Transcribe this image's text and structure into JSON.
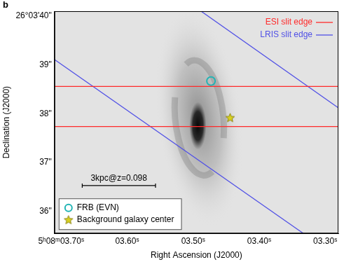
{
  "chart_data": {
    "type": "scatter",
    "panel": "b",
    "x_label": "Right Ascension (J2000)",
    "y_label": "Declination (J2000)",
    "xlim": [
      3.71,
      3.28
    ],
    "ylim": [
      35.55,
      40.1
    ],
    "xticks": [
      {
        "value": 3.7,
        "label": "5ʰ08ᵐ03.70ˢ"
      },
      {
        "value": 3.6,
        "label": "03.60ˢ"
      },
      {
        "value": 3.5,
        "label": "03.50ˢ"
      },
      {
        "value": 3.4,
        "label": "03.40ˢ"
      },
      {
        "value": 3.3,
        "label": "03.30ˢ"
      }
    ],
    "yticks": [
      {
        "value": 36,
        "label": "36\""
      },
      {
        "value": 37,
        "label": "37\""
      },
      {
        "value": 38,
        "label": "38\""
      },
      {
        "value": 39,
        "label": "39\""
      },
      {
        "value": 40,
        "label": "26°03'40\""
      }
    ],
    "grid": false,
    "series": [
      {
        "name": "ESI slit edge",
        "type": "line",
        "color": "#ff2a2a",
        "line_style": "solid",
        "legend": "upper right",
        "segments": [
          {
            "x": [
              3.71,
              3.28
            ],
            "values": [
              38.56,
              38.56
            ]
          },
          {
            "x": [
              3.71,
              3.28
            ],
            "values": [
              37.74,
              37.74
            ]
          }
        ]
      },
      {
        "name": "LRIS slit edge",
        "type": "line",
        "color": "#5050e6",
        "line_style": "solid",
        "legend": "upper right",
        "segments": [
          {
            "x": [
              3.488,
              3.28
            ],
            "values": [
              40.1,
              38.12
            ]
          },
          {
            "x": [
              3.71,
              3.333
            ],
            "values": [
              39.11,
              35.55
            ]
          }
        ]
      },
      {
        "name": "FRB (EVN)",
        "type": "scatter",
        "color": "#22b4b4",
        "marker": "circle",
        "legend": "lower left",
        "x": [
          3.473
        ],
        "values": [
          38.67
        ]
      },
      {
        "name": "Background galaxy center",
        "type": "scatter",
        "color": "#d8d020",
        "marker": "star",
        "legend": "lower left",
        "x": [
          3.444
        ],
        "values": [
          37.92
        ]
      }
    ],
    "annotations": [
      {
        "text": "3kpc@z=0.098",
        "x": [
          3.668,
          3.557
        ],
        "y": 36.53
      }
    ]
  }
}
